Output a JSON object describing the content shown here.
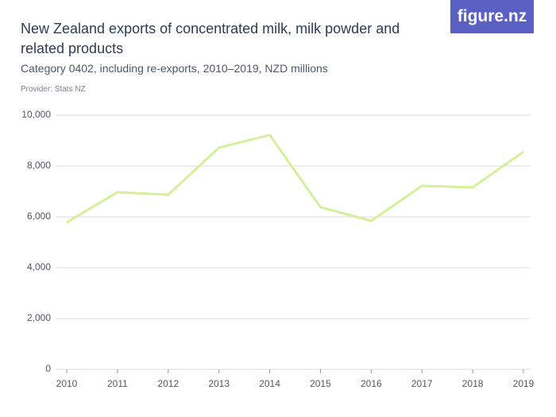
{
  "chart_data": {
    "type": "line",
    "title": "New Zealand exports of concentrated milk, milk powder and related products",
    "subtitle": "Category 0402, including re-exports, 2010–2019, NZD millions",
    "provider": "Provider: Stats NZ",
    "logo": "figure.nz",
    "categories": [
      "2010",
      "2011",
      "2012",
      "2013",
      "2014",
      "2015",
      "2016",
      "2017",
      "2018",
      "2019"
    ],
    "values": [
      5780,
      6970,
      6870,
      8720,
      9220,
      6380,
      5840,
      7220,
      7160,
      8560
    ],
    "color": "#d4f09a",
    "ylim": [
      0,
      10000
    ],
    "yticks": [
      0,
      {
        "value": 2000,
        "label": "2,000"
      },
      {
        "value": 4000,
        "label": "4,000"
      },
      {
        "value": 6000,
        "label": "6,000"
      },
      {
        "value": 8000,
        "label": "8,000"
      },
      {
        "value": 10000,
        "label": "10,000"
      }
    ],
    "grid": true
  }
}
